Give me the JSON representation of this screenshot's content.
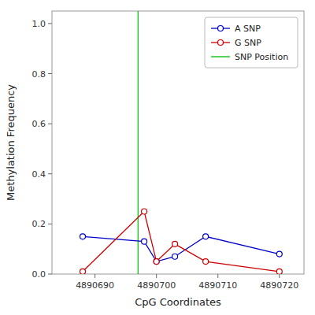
{
  "chart_data": {
    "type": "line",
    "xlabel": "CpG Coordinates",
    "ylabel": "Methylation Frequency",
    "x": [
      4890688,
      4890698,
      4890700,
      4890703,
      4890708,
      4890720
    ],
    "series": [
      {
        "name": "A SNP",
        "color": "#0000CC",
        "marker": "circle",
        "values": [
          0.15,
          0.13,
          0.05,
          0.07,
          0.15,
          0.08
        ]
      },
      {
        "name": "G SNP",
        "color": "#CC0000",
        "marker": "circle",
        "values": [
          0.01,
          0.25,
          0.05,
          0.12,
          0.05,
          0.01
        ]
      }
    ],
    "vline": {
      "name": "SNP Position",
      "color": "#00BB00",
      "x": 4890697
    },
    "xlim": [
      4890683,
      4890724
    ],
    "ylim": [
      0.0,
      1.05
    ],
    "xticks": [
      4890690,
      4890700,
      4890710,
      4890720
    ],
    "yticks": [
      {
        "value": 0,
        "label": "0.0"
      },
      0.2,
      0.4,
      0.6,
      0.8,
      {
        "value": 1,
        "label": "1.0"
      }
    ],
    "grid": false,
    "legend": "upper right"
  }
}
